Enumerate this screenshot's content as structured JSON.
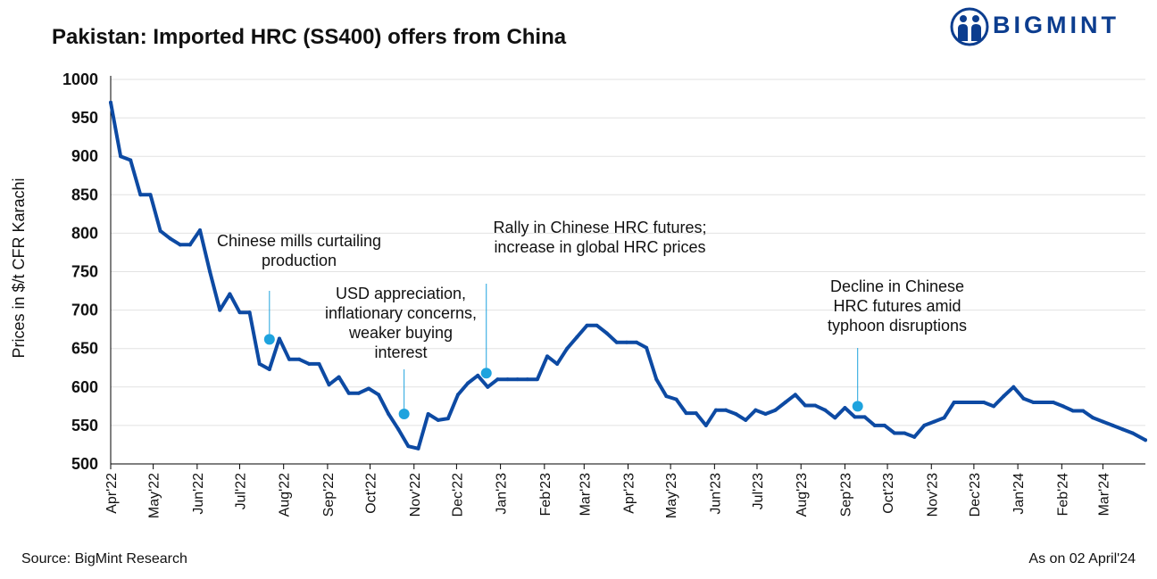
{
  "header": {
    "title": "Pakistan: Imported HRC (SS400) offers from China",
    "brand": "BIGMINT"
  },
  "footer": {
    "source": "Source: BigMint Research",
    "as_on": "As on 02 April'24"
  },
  "colors": {
    "line": "#0d4aa3",
    "marker": "#1ea3de",
    "grid": "#e2e2e2",
    "brand": "#0c3d8f"
  },
  "annotations": [
    {
      "lines": [
        "Chinese mills curtailing",
        "production"
      ],
      "x": "2022-07-22",
      "y": 662
    },
    {
      "lines": [
        "USD appreciation,",
        "inflationary concerns,",
        "weaker buying",
        "interest"
      ],
      "x": "2022-10-25",
      "y": 565
    },
    {
      "lines": [
        "Rally in Chinese HRC futures;",
        "increase in global HRC prices"
      ],
      "x": "2022-12-22",
      "y": 618
    },
    {
      "lines": [
        "Decline in Chinese",
        "HRC futures amid",
        "typhoon disruptions"
      ],
      "x": "2023-09-10",
      "y": 575
    }
  ],
  "chart_data": {
    "type": "line",
    "title": "Pakistan: Imported HRC (SS400) offers from China",
    "xlabel": "",
    "ylabel": "Prices in $/t CFR Karachi",
    "ylim": [
      500,
      1000
    ],
    "xlim": [
      "2022-04-01",
      "2024-03-31"
    ],
    "yticks": [
      500,
      550,
      600,
      650,
      700,
      750,
      800,
      850,
      900,
      950,
      1000
    ],
    "xticks": [
      "Apr'22",
      "May'22",
      "Jun'22",
      "Jul'22",
      "Aug'22",
      "Sep'22",
      "Oct'22",
      "Nov'22",
      "Dec'22",
      "Jan'23",
      "Feb'23",
      "Mar'23",
      "Apr'23",
      "May'23",
      "Jun'23",
      "Jul'23",
      "Aug'23",
      "Sep'23",
      "Oct'23",
      "Nov'23",
      "Dec'23",
      "Jan'24",
      "Feb'24",
      "Mar'24"
    ],
    "grid": true,
    "series": [
      {
        "name": "",
        "points": [
          [
            "2022-04-01",
            970
          ],
          [
            "2022-04-08",
            900
          ],
          [
            "2022-04-15",
            895
          ],
          [
            "2022-04-22",
            850
          ],
          [
            "2022-04-29",
            850
          ],
          [
            "2022-05-06",
            803
          ],
          [
            "2022-05-13",
            793
          ],
          [
            "2022-05-20",
            785
          ],
          [
            "2022-05-27",
            785
          ],
          [
            "2022-06-03",
            804
          ],
          [
            "2022-06-10",
            750
          ],
          [
            "2022-06-17",
            700
          ],
          [
            "2022-06-24",
            721
          ],
          [
            "2022-07-01",
            697
          ],
          [
            "2022-07-08",
            697
          ],
          [
            "2022-07-15",
            630
          ],
          [
            "2022-07-22",
            623
          ],
          [
            "2022-07-29",
            663
          ],
          [
            "2022-08-05",
            636
          ],
          [
            "2022-08-12",
            636
          ],
          [
            "2022-08-19",
            630
          ],
          [
            "2022-08-26",
            630
          ],
          [
            "2022-09-02",
            603
          ],
          [
            "2022-09-09",
            613
          ],
          [
            "2022-09-16",
            592
          ],
          [
            "2022-09-23",
            592
          ],
          [
            "2022-09-30",
            598
          ],
          [
            "2022-10-07",
            590
          ],
          [
            "2022-10-14",
            565
          ],
          [
            "2022-10-21",
            545
          ],
          [
            "2022-10-28",
            523
          ],
          [
            "2022-11-04",
            520
          ],
          [
            "2022-11-11",
            565
          ],
          [
            "2022-11-18",
            557
          ],
          [
            "2022-11-25",
            559
          ],
          [
            "2022-12-02",
            590
          ],
          [
            "2022-12-09",
            605
          ],
          [
            "2022-12-16",
            615
          ],
          [
            "2022-12-23",
            600
          ],
          [
            "2022-12-30",
            610
          ],
          [
            "2023-01-06",
            610
          ],
          [
            "2023-01-13",
            610
          ],
          [
            "2023-01-20",
            610
          ],
          [
            "2023-01-27",
            610
          ],
          [
            "2023-02-03",
            640
          ],
          [
            "2023-02-10",
            630
          ],
          [
            "2023-02-17",
            650
          ],
          [
            "2023-02-24",
            665
          ],
          [
            "2023-03-03",
            680
          ],
          [
            "2023-03-10",
            680
          ],
          [
            "2023-03-17",
            670
          ],
          [
            "2023-03-24",
            658
          ],
          [
            "2023-03-31",
            658
          ],
          [
            "2023-04-07",
            658
          ],
          [
            "2023-04-14",
            651
          ],
          [
            "2023-04-21",
            610
          ],
          [
            "2023-04-28",
            588
          ],
          [
            "2023-05-05",
            584
          ],
          [
            "2023-05-12",
            566
          ],
          [
            "2023-05-19",
            566
          ],
          [
            "2023-05-26",
            550
          ],
          [
            "2023-06-02",
            570
          ],
          [
            "2023-06-09",
            570
          ],
          [
            "2023-06-16",
            565
          ],
          [
            "2023-06-23",
            557
          ],
          [
            "2023-06-30",
            570
          ],
          [
            "2023-07-07",
            565
          ],
          [
            "2023-07-14",
            570
          ],
          [
            "2023-07-21",
            580
          ],
          [
            "2023-07-28",
            590
          ],
          [
            "2023-08-04",
            576
          ],
          [
            "2023-08-11",
            576
          ],
          [
            "2023-08-18",
            570
          ],
          [
            "2023-08-25",
            560
          ],
          [
            "2023-09-01",
            573
          ],
          [
            "2023-09-08",
            561
          ],
          [
            "2023-09-15",
            561
          ],
          [
            "2023-09-22",
            550
          ],
          [
            "2023-09-29",
            550
          ],
          [
            "2023-10-06",
            540
          ],
          [
            "2023-10-13",
            540
          ],
          [
            "2023-10-20",
            535
          ],
          [
            "2023-10-27",
            550
          ],
          [
            "2023-11-03",
            555
          ],
          [
            "2023-11-10",
            560
          ],
          [
            "2023-11-17",
            580
          ],
          [
            "2023-11-24",
            580
          ],
          [
            "2023-12-01",
            580
          ],
          [
            "2023-12-08",
            580
          ],
          [
            "2023-12-15",
            575
          ],
          [
            "2023-12-22",
            588
          ],
          [
            "2023-12-29",
            600
          ],
          [
            "2024-01-05",
            585
          ],
          [
            "2024-01-12",
            580
          ],
          [
            "2024-01-19",
            580
          ],
          [
            "2024-01-26",
            580
          ],
          [
            "2024-02-02",
            575
          ],
          [
            "2024-02-09",
            569
          ],
          [
            "2024-02-16",
            569
          ],
          [
            "2024-02-23",
            560
          ],
          [
            "2024-03-01",
            555
          ],
          [
            "2024-03-08",
            550
          ],
          [
            "2024-03-15",
            545
          ],
          [
            "2024-03-22",
            540
          ],
          [
            "2024-03-31",
            531
          ]
        ]
      }
    ]
  }
}
